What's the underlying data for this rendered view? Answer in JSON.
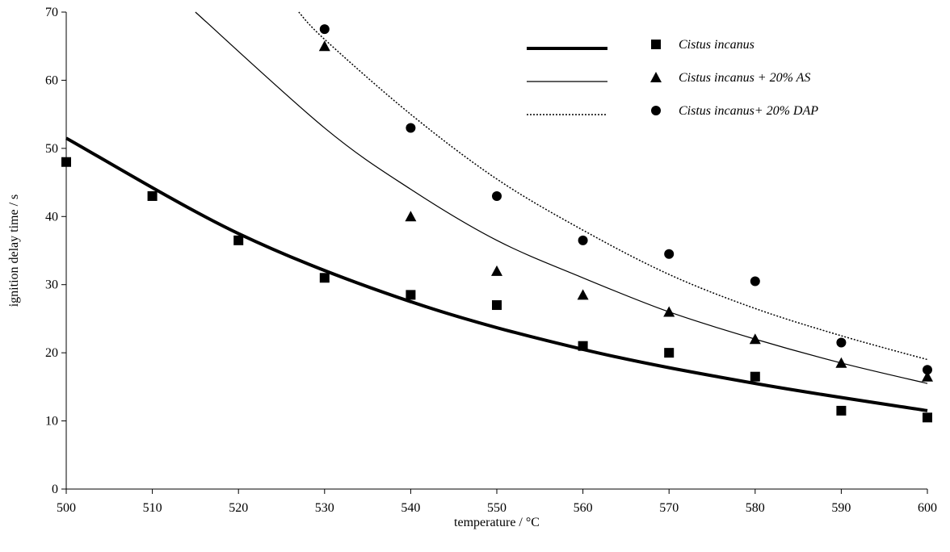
{
  "chart_data": {
    "type": "scatter",
    "title": "",
    "xlabel": "temperature / °C",
    "ylabel": "ignition delay time / s",
    "xlim": [
      500,
      600
    ],
    "ylim": [
      0,
      70
    ],
    "xticks": [
      500,
      510,
      520,
      530,
      540,
      550,
      560,
      570,
      580,
      590,
      600
    ],
    "yticks": [
      0,
      10,
      20,
      30,
      40,
      50,
      60,
      70
    ],
    "grid": false,
    "legend_position": "top-right",
    "series": [
      {
        "name": "Cistus incanus",
        "marker": "square",
        "line_style": "thick-solid",
        "x": [
          500,
          510,
          520,
          530,
          540,
          550,
          560,
          570,
          580,
          590,
          600
        ],
        "y": [
          48,
          43,
          36.5,
          31,
          28.5,
          27,
          21,
          20,
          16.5,
          11.5,
          10.5
        ],
        "trend": {
          "x": [
            500,
            520,
            540,
            560,
            580,
            600
          ],
          "y": [
            51.5,
            37.5,
            27.5,
            20.5,
            15.5,
            11.5
          ]
        }
      },
      {
        "name": "Cistus incanus + 20% AS",
        "marker": "triangle",
        "line_style": "thin-solid",
        "x": [
          530,
          540,
          550,
          560,
          570,
          580,
          590,
          600
        ],
        "y": [
          65,
          40,
          32,
          28.5,
          26,
          22,
          18.5,
          16.5
        ],
        "trend": {
          "x": [
            515,
            530,
            540,
            550,
            560,
            570,
            580,
            590,
            600
          ],
          "y": [
            70,
            53,
            44,
            36.5,
            31,
            26,
            22,
            18.5,
            15.5
          ]
        }
      },
      {
        "name": "Cistus incanus+ 20% DAP",
        "marker": "circle",
        "line_style": "dotted",
        "x": [
          530,
          540,
          550,
          560,
          570,
          580,
          590,
          600
        ],
        "y": [
          67.5,
          53,
          43,
          36.5,
          34.5,
          30.5,
          21.5,
          17.5
        ],
        "trend": {
          "x": [
            527,
            530,
            540,
            550,
            560,
            570,
            580,
            590,
            600
          ],
          "y": [
            70,
            66,
            55,
            45.5,
            38,
            31.5,
            26.5,
            22.5,
            19
          ]
        }
      }
    ]
  }
}
